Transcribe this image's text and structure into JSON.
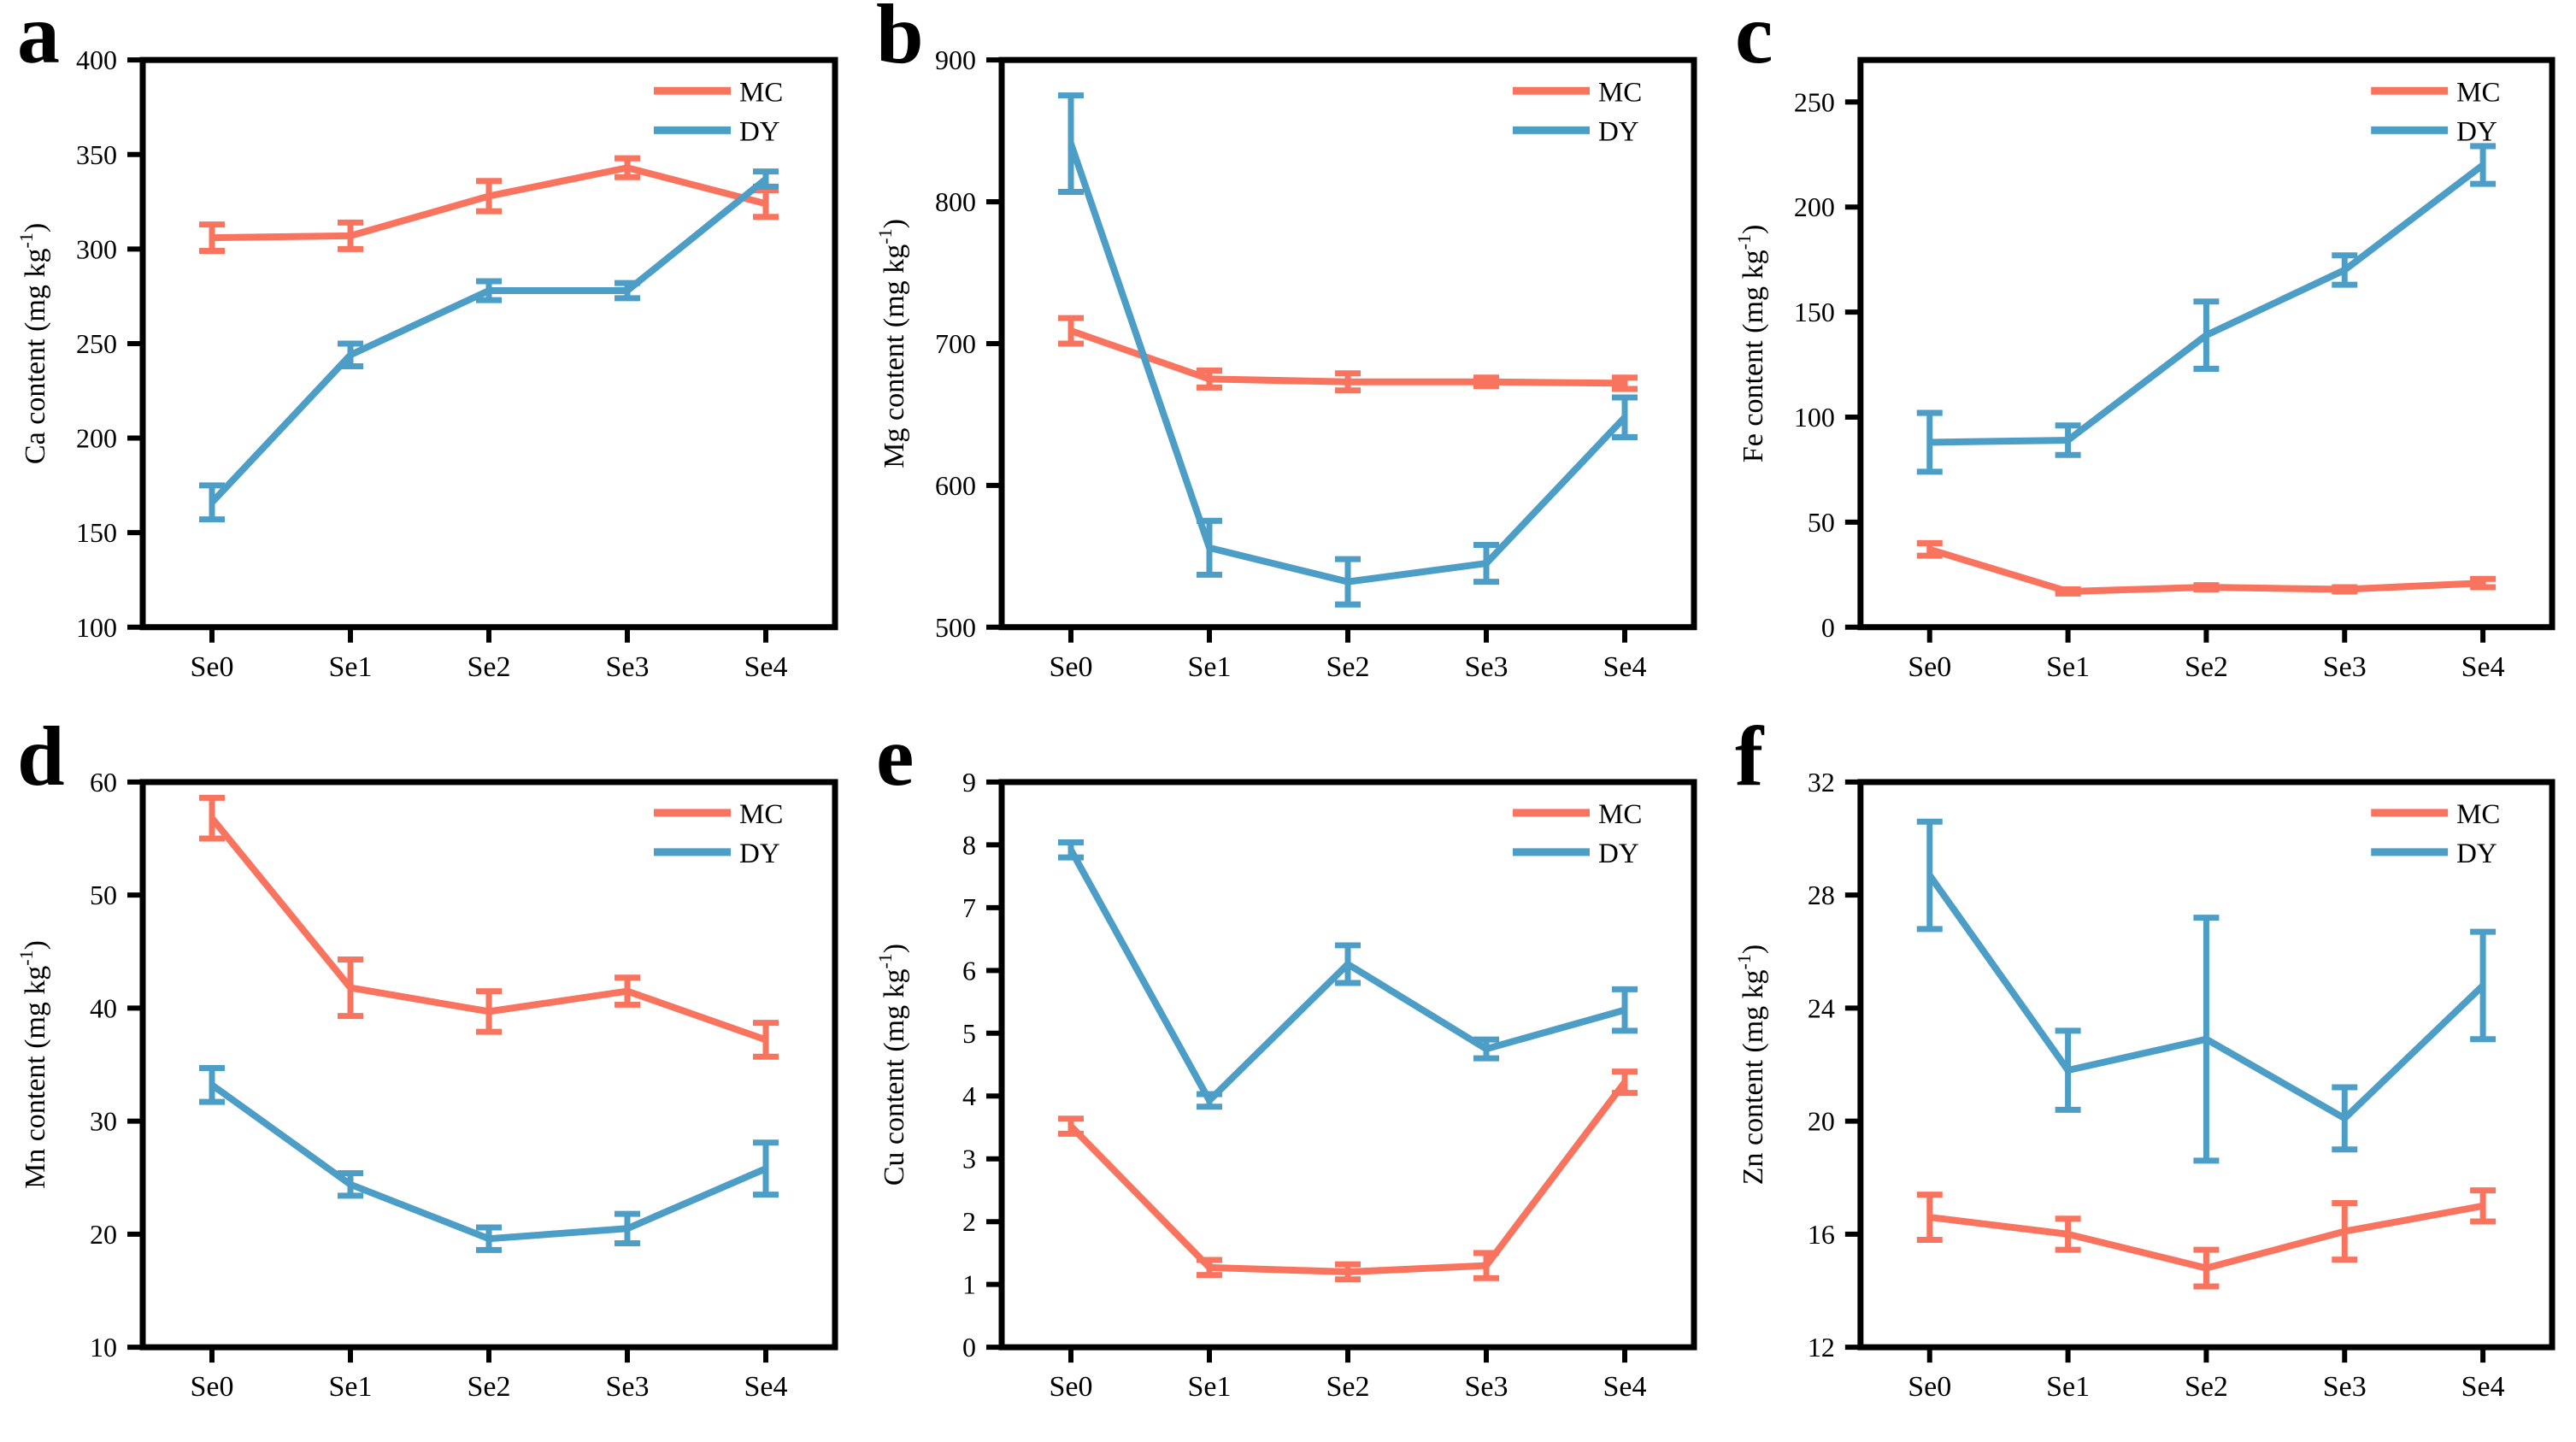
{
  "figure": {
    "x_categories": [
      "Se0",
      "Se1",
      "Se2",
      "Se3",
      "Se4"
    ],
    "legend": {
      "position": "top-right",
      "items": [
        {
          "label": "MC",
          "color": "#F9745F"
        },
        {
          "label": "DY",
          "color": "#4D9EC6"
        }
      ]
    },
    "axis_color": "#000000",
    "background": "#ffffff"
  },
  "chart_data": [
    {
      "letter": "a",
      "type": "line",
      "ylabel_main": "Ca content (mg kg",
      "ylabel_sup": "-1",
      "ylabel_end": ")",
      "xlabel": "",
      "categories": [
        "Se0",
        "Se1",
        "Se2",
        "Se3",
        "Se4"
      ],
      "ylim": [
        100,
        400
      ],
      "yticks": [
        100,
        150,
        200,
        250,
        300,
        350,
        400
      ],
      "grid": false,
      "legend_position": "top-right",
      "series": [
        {
          "name": "MC",
          "color": "#F9745F",
          "values": [
            306,
            307,
            328,
            343,
            324
          ],
          "errors": [
            7,
            7,
            8,
            5,
            7
          ]
        },
        {
          "name": "DY",
          "color": "#4D9EC6",
          "values": [
            166,
            244,
            278,
            278,
            337
          ],
          "errors": [
            9,
            6,
            5,
            4,
            4
          ]
        }
      ]
    },
    {
      "letter": "b",
      "type": "line",
      "ylabel_main": "Mg content (mg kg",
      "ylabel_sup": "-1",
      "ylabel_end": ")",
      "xlabel": "",
      "categories": [
        "Se0",
        "Se1",
        "Se2",
        "Se3",
        "Se4"
      ],
      "ylim": [
        500,
        900
      ],
      "yticks": [
        500,
        600,
        700,
        800,
        900
      ],
      "grid": false,
      "legend_position": "top-right",
      "series": [
        {
          "name": "MC",
          "color": "#F9745F",
          "values": [
            709,
            675,
            673,
            673,
            672
          ],
          "errors": [
            9,
            6,
            6,
            3,
            4
          ]
        },
        {
          "name": "DY",
          "color": "#4D9EC6",
          "values": [
            841,
            556,
            532,
            545,
            648
          ],
          "errors": [
            34,
            19,
            16,
            13,
            14
          ]
        }
      ]
    },
    {
      "letter": "c",
      "type": "line",
      "ylabel_main": "Fe content (mg kg",
      "ylabel_sup": "-1",
      "ylabel_end": ")",
      "xlabel": "",
      "categories": [
        "Se0",
        "Se1",
        "Se2",
        "Se3",
        "Se4"
      ],
      "ylim": [
        0,
        270
      ],
      "yticks": [
        0,
        50,
        100,
        150,
        200,
        250
      ],
      "grid": false,
      "legend_position": "top-right",
      "series": [
        {
          "name": "MC",
          "color": "#F9745F",
          "values": [
            37,
            17,
            19,
            18,
            21
          ],
          "errors": [
            3,
            1,
            1,
            1,
            2
          ]
        },
        {
          "name": "DY",
          "color": "#4D9EC6",
          "values": [
            88,
            89,
            139,
            170,
            220
          ],
          "errors": [
            14,
            7,
            16,
            7,
            9
          ]
        }
      ]
    },
    {
      "letter": "d",
      "type": "line",
      "ylabel_main": "Mn content (mg kg",
      "ylabel_sup": "-1",
      "ylabel_end": ")",
      "xlabel": "",
      "categories": [
        "Se0",
        "Se1",
        "Se2",
        "Se3",
        "Se4"
      ],
      "ylim": [
        10,
        60
      ],
      "yticks": [
        10,
        20,
        30,
        40,
        50,
        60
      ],
      "grid": false,
      "legend_position": "top-right",
      "series": [
        {
          "name": "MC",
          "color": "#F9745F",
          "values": [
            56.8,
            41.8,
            39.7,
            41.5,
            37.2
          ],
          "errors": [
            1.8,
            2.5,
            1.8,
            1.2,
            1.5
          ]
        },
        {
          "name": "DY",
          "color": "#4D9EC6",
          "values": [
            33.2,
            24.4,
            19.6,
            20.5,
            25.8
          ],
          "errors": [
            1.5,
            1.0,
            1.0,
            1.3,
            2.3
          ]
        }
      ]
    },
    {
      "letter": "e",
      "type": "line",
      "ylabel_main": "Cu content (mg kg",
      "ylabel_sup": "-1",
      "ylabel_end": ")",
      "xlabel": "",
      "categories": [
        "Se0",
        "Se1",
        "Se2",
        "Se3",
        "Se4"
      ],
      "ylim": [
        0,
        9
      ],
      "yticks": [
        0,
        1,
        2,
        3,
        4,
        5,
        6,
        7,
        8,
        9
      ],
      "grid": false,
      "legend_position": "top-right",
      "series": [
        {
          "name": "MC",
          "color": "#F9745F",
          "values": [
            3.52,
            1.27,
            1.2,
            1.3,
            4.22
          ],
          "errors": [
            0.12,
            0.12,
            0.12,
            0.2,
            0.17
          ]
        },
        {
          "name": "DY",
          "color": "#4D9EC6",
          "values": [
            7.92,
            3.93,
            6.1,
            4.75,
            5.37
          ],
          "errors": [
            0.12,
            0.1,
            0.3,
            0.15,
            0.33
          ]
        }
      ]
    },
    {
      "letter": "f",
      "type": "line",
      "ylabel_main": "Zn content (mg kg",
      "ylabel_sup": "-1",
      "ylabel_end": ")",
      "xlabel": "",
      "categories": [
        "Se0",
        "Se1",
        "Se2",
        "Se3",
        "Se4"
      ],
      "ylim": [
        12,
        32
      ],
      "yticks": [
        12,
        16,
        20,
        24,
        28,
        32
      ],
      "grid": false,
      "legend_position": "top-right",
      "series": [
        {
          "name": "MC",
          "color": "#F9745F",
          "values": [
            16.6,
            16.0,
            14.8,
            16.1,
            17.0
          ],
          "errors": [
            0.8,
            0.55,
            0.65,
            1.0,
            0.55
          ]
        },
        {
          "name": "DY",
          "color": "#4D9EC6",
          "values": [
            28.7,
            21.8,
            22.9,
            20.1,
            24.8
          ],
          "errors": [
            1.9,
            1.4,
            4.3,
            1.1,
            1.9
          ]
        }
      ]
    }
  ]
}
